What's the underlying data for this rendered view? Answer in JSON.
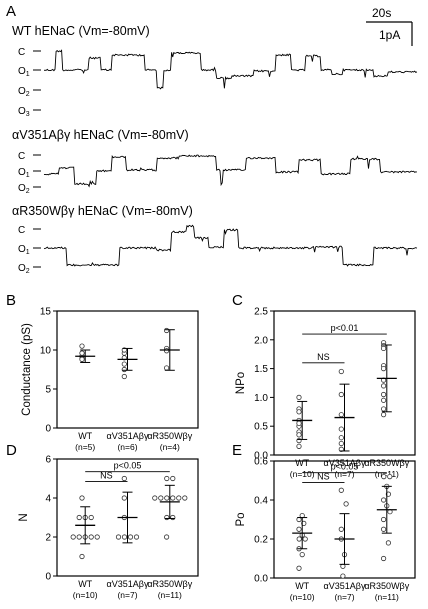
{
  "scale_bar": {
    "time": "20s",
    "current": "1pA"
  },
  "panel_a": {
    "letter": "A",
    "traces": [
      {
        "title": "WT hENaC (Vm=-80mV)",
        "levels": [
          "C",
          "O1",
          "O2",
          "O3"
        ]
      },
      {
        "title": "αV351Aβγ hENaC (Vm=-80mV)",
        "levels": [
          "C",
          "O1",
          "O2"
        ]
      },
      {
        "title": "αR350Wβγ hENaC (Vm=-80mV)",
        "levels": [
          "C",
          "O1",
          "O2"
        ]
      }
    ]
  },
  "chart_data": [
    {
      "panel": "B",
      "type": "scatter",
      "ylabel": "Conductance (pS)",
      "ylim": [
        0,
        15
      ],
      "yticks": [
        0,
        5,
        10,
        15
      ],
      "categories": [
        "WT",
        "αV351Aβγ",
        "αR350Wβγ"
      ],
      "n_labels": [
        "(n=5)",
        "(n=6)",
        "(n=4)"
      ],
      "points": [
        [
          9.2,
          9.6,
          8.9,
          10.5,
          8.8
        ],
        [
          9.6,
          9.0,
          8.2,
          7.5,
          10.0,
          6.6
        ],
        [
          12.5,
          10.2,
          7.7,
          9.9
        ]
      ],
      "mean": [
        9.2,
        8.8,
        10.0
      ],
      "sd": [
        0.8,
        1.4,
        2.6
      ],
      "comparisons": []
    },
    {
      "panel": "C",
      "type": "scatter",
      "ylabel": "NPo",
      "ylim": [
        0,
        2.5
      ],
      "yticks": [
        0.0,
        0.5,
        1.0,
        1.5,
        2.0,
        2.5
      ],
      "categories": [
        "WT",
        "αV351Aβγ",
        "αR350Wβγ"
      ],
      "n_labels": [
        "(n=10)",
        "(n=7)",
        "(n=11)"
      ],
      "points": [
        [
          1.0,
          0.8,
          0.6,
          0.5,
          0.4,
          0.35,
          0.25,
          0.75,
          0.55,
          0.15
        ],
        [
          1.45,
          1.05,
          0.7,
          0.45,
          0.3,
          0.2,
          0.1
        ],
        [
          1.95,
          1.9,
          1.85,
          1.55,
          1.5,
          1.3,
          1.2,
          1.05,
          0.95,
          0.7,
          0.8
        ]
      ],
      "mean": [
        0.6,
        0.65,
        1.33
      ],
      "sd": [
        0.33,
        0.58,
        0.58
      ],
      "comparisons": [
        {
          "from": 0,
          "to": 1,
          "label": "NS",
          "y": 1.6
        },
        {
          "from": 0,
          "to": 2,
          "label": "p<0.01",
          "y": 2.1
        }
      ]
    },
    {
      "panel": "D",
      "type": "scatter",
      "ylabel": "N",
      "ylim": [
        0,
        6
      ],
      "yticks": [
        0,
        2,
        4,
        6
      ],
      "categories": [
        "WT",
        "αV351Aβγ",
        "αR350Wβγ"
      ],
      "n_labels": [
        "(n=10)",
        "(n=7)",
        "(n=11)"
      ],
      "points": [
        [
          4,
          3,
          3,
          3,
          2,
          2,
          2,
          2,
          2,
          1
        ],
        [
          5,
          4,
          3,
          2,
          2,
          2,
          2
        ],
        [
          5,
          5,
          4,
          4,
          4,
          4,
          4,
          4,
          3,
          3,
          2
        ]
      ],
      "mean": [
        2.6,
        3.0,
        3.8
      ],
      "sd": [
        0.95,
        1.3,
        0.85
      ],
      "comparisons": [
        {
          "from": 0,
          "to": 1,
          "label": "NS",
          "y": 4.85
        },
        {
          "from": 0,
          "to": 2,
          "label": "p<0.05",
          "y": 5.35
        }
      ]
    },
    {
      "panel": "E",
      "type": "scatter",
      "ylabel": "Po",
      "ylim": [
        0,
        0.6
      ],
      "yticks": [
        0.0,
        0.2,
        0.4,
        0.6
      ],
      "categories": [
        "WT",
        "αV351Aβγ",
        "αR350Wβγ"
      ],
      "n_labels": [
        "(n=10)",
        "(n=7)",
        "(n=11)"
      ],
      "points": [
        [
          0.32,
          0.3,
          0.28,
          0.25,
          0.22,
          0.2,
          0.2,
          0.15,
          0.12,
          0.05
        ],
        [
          0.45,
          0.38,
          0.25,
          0.2,
          0.12,
          0.06,
          0.01
        ],
        [
          0.52,
          0.52,
          0.47,
          0.43,
          0.4,
          0.37,
          0.34,
          0.3,
          0.25,
          0.18,
          0.1
        ]
      ],
      "mean": [
        0.23,
        0.2,
        0.35
      ],
      "sd": [
        0.08,
        0.13,
        0.12
      ],
      "comparisons": [
        {
          "from": 0,
          "to": 1,
          "label": "NS",
          "y": 0.49
        },
        {
          "from": 0,
          "to": 2,
          "label": "p<0.05",
          "y": 0.54
        }
      ]
    }
  ]
}
